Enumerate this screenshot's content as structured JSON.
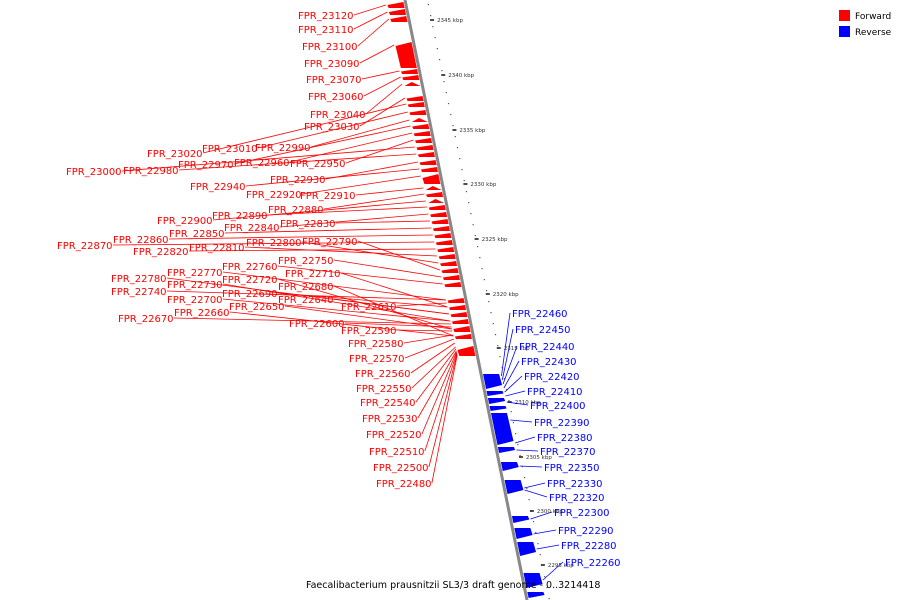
{
  "legend": [
    {
      "label": "Forward",
      "color": "#ff0000"
    },
    {
      "label": "Reverse",
      "color": "#0000ff"
    }
  ],
  "caption": "Faecalibacterium prausnitzii SL3/3 draft genome - 0..3214418",
  "colors": {
    "forward": "#ff0000",
    "reverse": "#0000ff",
    "backbone": "#888888",
    "tick": "#111111"
  },
  "axis_ticks": [
    "2345 kbp",
    "2340 kbp",
    "2335 kbp",
    "2330 kbp",
    "2325 kbp",
    "2320 kbp",
    "2315 kbp",
    "2310 kbp",
    "2305 kbp",
    "2300 kbp",
    "2295 kbp"
  ],
  "forward_genes": [
    "FPR_23120",
    "FPR_23110",
    "FPR_23100",
    "FPR_23090",
    "FPR_23070",
    "FPR_23060",
    "FPR_23040",
    "FPR_23030",
    "FPR_23020",
    "FPR_23010",
    "FPR_22990",
    "FPR_22970",
    "FPR_22960",
    "FPR_22950",
    "FPR_23000",
    "FPR_22980",
    "FPR_22930",
    "FPR_22940",
    "FPR_22920",
    "FPR_22910",
    "FPR_22880",
    "FPR_22900",
    "FPR_22890",
    "FPR_22840",
    "FPR_22830",
    "FPR_22850",
    "FPR_22860",
    "FPR_22870",
    "FPR_22820",
    "FPR_22810",
    "FPR_22800",
    "FPR_22790",
    "FPR_22750",
    "FPR_22760",
    "FPR_22770",
    "FPR_22710",
    "FPR_22780",
    "FPR_22730",
    "FPR_22720",
    "FPR_22680",
    "FPR_22740",
    "FPR_22690",
    "FPR_22640",
    "FPR_22700",
    "FPR_22650",
    "FPR_22660",
    "FPR_22610",
    "FPR_22670",
    "FPR_22600",
    "FPR_22590",
    "FPR_22580",
    "FPR_22570",
    "FPR_22560",
    "FPR_22550",
    "FPR_22540",
    "FPR_22530",
    "FPR_22520",
    "FPR_22510",
    "FPR_22500",
    "FPR_22480"
  ],
  "reverse_genes": [
    "FPR_22460",
    "FPR_22450",
    "FPR_22440",
    "FPR_22430",
    "FPR_22420",
    "FPR_22410",
    "FPR_22400",
    "FPR_22390",
    "FPR_22380",
    "FPR_22370",
    "FPR_22350",
    "FPR_22330",
    "FPR_22320",
    "FPR_22300",
    "FPR_22290",
    "FPR_22280",
    "FPR_22260"
  ]
}
